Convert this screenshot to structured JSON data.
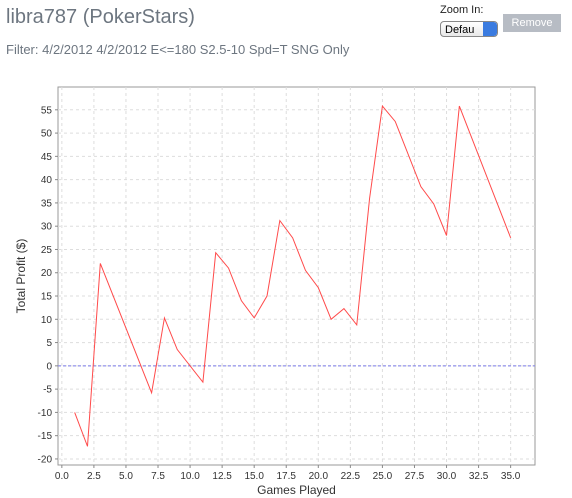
{
  "header": {
    "title": "libra787 (PokerStars)",
    "filter": "Filter: 4/2/2012 4/2/2012 E<=180 S2.5-10 Spd=T SNG Only"
  },
  "controls": {
    "zoom_label": "Zoom In:",
    "zoom_select": "Defau",
    "remove_button": "Remove"
  },
  "chart_data": {
    "type": "line",
    "x_label": "Games Played",
    "y_label": "Total Profit ($)",
    "series": [
      {
        "color": "#ff4a4a",
        "x": [
          1,
          2,
          3,
          7,
          8,
          9,
          11,
          12,
          13,
          14,
          15,
          16,
          17,
          18,
          19,
          20,
          21,
          22,
          23,
          24,
          25,
          26,
          28,
          29,
          30,
          31,
          35
        ],
        "values": [
          -10,
          -17.3,
          22,
          -5.8,
          10.3,
          3.5,
          -3.5,
          24.3,
          21,
          14,
          10.3,
          15,
          31.2,
          27.5,
          20.5,
          16.8,
          10,
          12.3,
          8.8,
          36,
          55.8,
          52.5,
          38.5,
          34.8,
          28,
          55.8,
          27.5
        ]
      }
    ],
    "hline": {
      "y": 0,
      "color": "#7a7ae8"
    },
    "xlim": [
      -0.3,
      36.9
    ],
    "ylim": [
      -21.3,
      59.9
    ],
    "xticks": [
      {
        "value": 0,
        "label": "0.0"
      },
      {
        "value": 2.5,
        "label": "2.5"
      },
      {
        "value": 5,
        "label": "5.0"
      },
      {
        "value": 7.5,
        "label": "7.5"
      },
      {
        "value": 10,
        "label": "10.0"
      },
      {
        "value": 12.5,
        "label": "12.5"
      },
      {
        "value": 15,
        "label": "15.0"
      },
      {
        "value": 17.5,
        "label": "17.5"
      },
      {
        "value": 20,
        "label": "20.0"
      },
      {
        "value": 22.5,
        "label": "22.5"
      },
      {
        "value": 25,
        "label": "25.0"
      },
      {
        "value": 27.5,
        "label": "27.5"
      },
      {
        "value": 30,
        "label": "30.0"
      },
      {
        "value": 32.5,
        "label": "32.5"
      },
      {
        "value": 35,
        "label": "35.0"
      }
    ],
    "yticks": [
      -20,
      -15,
      -10,
      -5,
      0,
      5,
      10,
      15,
      20,
      25,
      30,
      35,
      40,
      45,
      50,
      55
    ],
    "grid": true
  }
}
